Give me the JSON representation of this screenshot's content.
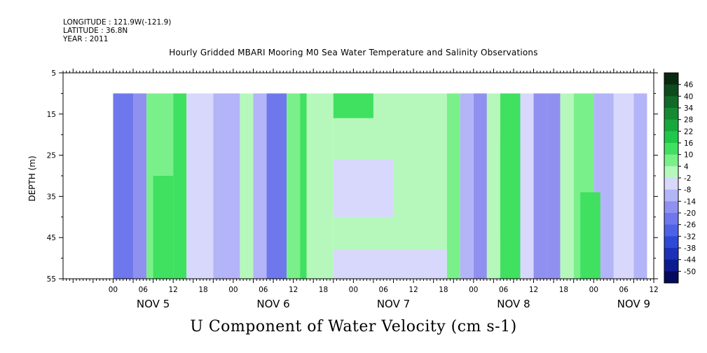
{
  "header": {
    "longitude": "LONGITUDE : 121.9W(-121.9)",
    "latitude": "LATITUDE : 36.8N",
    "year": "YEAR : 2011"
  },
  "chart_data": {
    "type": "heatmap",
    "title": "Hourly Gridded MBARI Mooring M0 Sea Water Temperature and Salinity Observations",
    "bottom_title": "U Component of Water Velocity (cm s-1)",
    "ylabel": "DEPTH (m)",
    "yticks": [
      "5",
      "15",
      "25",
      "35",
      "45",
      "55"
    ],
    "ylim": [
      5,
      55
    ],
    "y_inverted": true,
    "xlim_hours": [
      -15,
      162
    ],
    "x_hour_labels": [
      "00",
      "06",
      "12",
      "18",
      "00",
      "06",
      "12",
      "18",
      "00",
      "06",
      "12",
      "18",
      "00",
      "06",
      "12",
      "18",
      "00",
      "06",
      "12"
    ],
    "x_day_labels": [
      "NOV 5",
      "NOV 6",
      "NOV 7",
      "NOV 8",
      "NOV 9"
    ],
    "colorbar": {
      "labels": [
        "46",
        "40",
        "34",
        "28",
        "22",
        "16",
        "10",
        "4",
        "-2",
        "-8",
        "-14",
        "-20",
        "-26",
        "-32",
        "-38",
        "-44",
        "-50"
      ],
      "range": [
        -50,
        50
      ],
      "colors": [
        "#0a2a10",
        "#0f4a1c",
        "#126a28",
        "#158a32",
        "#17a83c",
        "#1fc84a",
        "#40e060",
        "#7af08a",
        "#b6f8bc",
        "#d8d8fc",
        "#b4b4f8",
        "#9090f0",
        "#6e78ec",
        "#4e62e6",
        "#3048d8",
        "#1c30b8",
        "#0c1c90",
        "#050a5c"
      ]
    },
    "data_extent": {
      "hour_start": 0,
      "hour_end": 160,
      "depth_top": 10,
      "depth_bottom": 55
    },
    "bands": [
      {
        "from": 0,
        "to": 6,
        "value": -22
      },
      {
        "from": 6,
        "to": 10,
        "value": -12
      },
      {
        "from": 10,
        "to": 18,
        "value": 8
      },
      {
        "from": 18,
        "to": 22,
        "value": 14
      },
      {
        "from": 22,
        "to": 30,
        "value": -2
      },
      {
        "from": 30,
        "to": 38,
        "value": -8
      },
      {
        "from": 38,
        "to": 42,
        "value": 2
      },
      {
        "from": 42,
        "to": 46,
        "value": -10
      },
      {
        "from": 46,
        "to": 52,
        "value": -18
      },
      {
        "from": 52,
        "to": 56,
        "value": 6
      },
      {
        "from": 56,
        "to": 58,
        "value": 12
      },
      {
        "from": 58,
        "to": 66,
        "value": 4
      },
      {
        "from": 66,
        "to": 100,
        "value": 3
      },
      {
        "from": 100,
        "to": 104,
        "value": 10
      },
      {
        "from": 104,
        "to": 108,
        "value": -6
      },
      {
        "from": 108,
        "to": 112,
        "value": -14
      },
      {
        "from": 112,
        "to": 116,
        "value": 4
      },
      {
        "from": 116,
        "to": 122,
        "value": 12
      },
      {
        "from": 122,
        "to": 126,
        "value": -2
      },
      {
        "from": 126,
        "to": 130,
        "value": -12
      },
      {
        "from": 130,
        "to": 134,
        "value": -16
      },
      {
        "from": 134,
        "to": 138,
        "value": 2
      },
      {
        "from": 138,
        "to": 144,
        "value": 8
      },
      {
        "from": 144,
        "to": 150,
        "value": -6
      },
      {
        "from": 150,
        "to": 156,
        "value": 0
      },
      {
        "from": 156,
        "to": 160,
        "value": -10
      }
    ],
    "patches": [
      {
        "hour_start": 66,
        "hour_end": 84,
        "depth_top": 26,
        "depth_bottom": 40,
        "value": -5
      },
      {
        "hour_start": 66,
        "hour_end": 100,
        "depth_top": 48,
        "depth_bottom": 55,
        "value": -3
      },
      {
        "hour_start": 66,
        "hour_end": 78,
        "depth_top": 10,
        "depth_bottom": 16,
        "value": 12
      },
      {
        "hour_start": 12,
        "hour_end": 18,
        "depth_top": 30,
        "depth_bottom": 55,
        "value": 14
      },
      {
        "hour_start": 116,
        "hour_end": 122,
        "depth_top": 22,
        "depth_bottom": 44,
        "value": 16
      },
      {
        "hour_start": 140,
        "hour_end": 146,
        "depth_top": 34,
        "depth_bottom": 55,
        "value": 12
      }
    ]
  }
}
